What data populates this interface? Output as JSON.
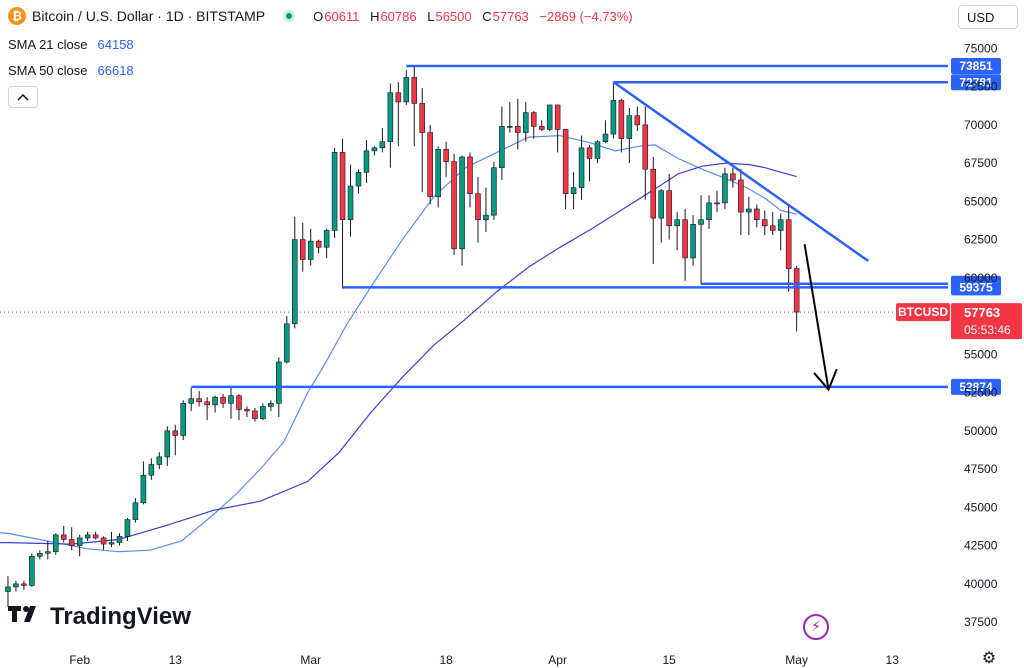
{
  "header": {
    "logo_glyph": "₿",
    "title": "Bitcoin / U.S. Dollar · 1D · BITSTAMP",
    "ohlc": [
      {
        "label": "O",
        "value": "60611"
      },
      {
        "label": "H",
        "value": "60786"
      },
      {
        "label": "L",
        "value": "56500"
      },
      {
        "label": "C",
        "value": "57763"
      }
    ],
    "change": "−2869 (−4.73%)"
  },
  "indicators": [
    {
      "label": "SMA 21 close",
      "value": "64158"
    },
    {
      "label": "SMA 50 close",
      "value": "66618"
    }
  ],
  "collapse_icon": "chevron-up",
  "currency": "USD",
  "branding": "TradingView",
  "colors": {
    "up": "#089981",
    "down": "#f23645",
    "level": "#2962ff",
    "sma": "#2962ff"
  },
  "chart_data": {
    "type": "candlestick",
    "symbol": "BTCUSD",
    "ylim": [
      36200,
      76200
    ],
    "y_ticks": [
      37500,
      40000,
      42500,
      45000,
      47500,
      50000,
      52500,
      55000,
      57500,
      60000,
      62500,
      65000,
      67500,
      70000,
      72500,
      75000
    ],
    "y_tick_labels": [
      "37500",
      "40000",
      "42500",
      "45000",
      "47500",
      "50000",
      "52500",
      "55000",
      "57500",
      "60000",
      "62500",
      "65000",
      "67500",
      "70000",
      "72500",
      "75000"
    ],
    "x_labels": [
      {
        "label": "Feb",
        "date": "2024-02-01"
      },
      {
        "label": "13",
        "date": "2024-02-13"
      },
      {
        "label": "Mar",
        "date": "2024-03-01"
      },
      {
        "label": "18",
        "date": "2024-03-18"
      },
      {
        "label": "Apr",
        "date": "2024-04-01"
      },
      {
        "label": "15",
        "date": "2024-04-15"
      },
      {
        "label": "May",
        "date": "2024-05-01"
      },
      {
        "label": "13",
        "date": "2024-05-13"
      }
    ],
    "x_range": [
      "2024-01-22",
      "2024-05-20"
    ],
    "candles": [
      {
        "date": "2024-01-23",
        "o": 39500,
        "h": 40500,
        "l": 38500,
        "c": 39800
      },
      {
        "date": "2024-01-24",
        "o": 39800,
        "h": 40200,
        "l": 39500,
        "c": 40000
      },
      {
        "date": "2024-01-25",
        "o": 40000,
        "h": 40200,
        "l": 39600,
        "c": 39900
      },
      {
        "date": "2024-01-26",
        "o": 39900,
        "h": 42000,
        "l": 39800,
        "c": 41800
      },
      {
        "date": "2024-01-27",
        "o": 41800,
        "h": 42200,
        "l": 41600,
        "c": 42000
      },
      {
        "date": "2024-01-28",
        "o": 42000,
        "h": 42800,
        "l": 41600,
        "c": 42100
      },
      {
        "date": "2024-01-29",
        "o": 42100,
        "h": 43300,
        "l": 41900,
        "c": 43200
      },
      {
        "date": "2024-01-30",
        "o": 43200,
        "h": 43800,
        "l": 42700,
        "c": 42900
      },
      {
        "date": "2024-01-31",
        "o": 42900,
        "h": 43700,
        "l": 42200,
        "c": 42500
      },
      {
        "date": "2024-02-01",
        "o": 42500,
        "h": 43200,
        "l": 41800,
        "c": 43000
      },
      {
        "date": "2024-02-02",
        "o": 43000,
        "h": 43400,
        "l": 42800,
        "c": 43200
      },
      {
        "date": "2024-02-03",
        "o": 43200,
        "h": 43400,
        "l": 42900,
        "c": 43000
      },
      {
        "date": "2024-02-04",
        "o": 43000,
        "h": 43100,
        "l": 42200,
        "c": 42600
      },
      {
        "date": "2024-02-05",
        "o": 42600,
        "h": 43400,
        "l": 42400,
        "c": 42700
      },
      {
        "date": "2024-02-06",
        "o": 42700,
        "h": 43300,
        "l": 42500,
        "c": 43100
      },
      {
        "date": "2024-02-07",
        "o": 43100,
        "h": 44300,
        "l": 42800,
        "c": 44200
      },
      {
        "date": "2024-02-08",
        "o": 44200,
        "h": 45600,
        "l": 44000,
        "c": 45300
      },
      {
        "date": "2024-02-09",
        "o": 45300,
        "h": 48000,
        "l": 45200,
        "c": 47100
      },
      {
        "date": "2024-02-10",
        "o": 47100,
        "h": 48200,
        "l": 46800,
        "c": 47800
      },
      {
        "date": "2024-02-11",
        "o": 47800,
        "h": 48600,
        "l": 47500,
        "c": 48300
      },
      {
        "date": "2024-02-12",
        "o": 48300,
        "h": 50300,
        "l": 47700,
        "c": 50000
      },
      {
        "date": "2024-02-13",
        "o": 50000,
        "h": 50400,
        "l": 48400,
        "c": 49700
      },
      {
        "date": "2024-02-14",
        "o": 49700,
        "h": 52000,
        "l": 49400,
        "c": 51800
      },
      {
        "date": "2024-02-15",
        "o": 51800,
        "h": 52800,
        "l": 51300,
        "c": 52100
      },
      {
        "date": "2024-02-16",
        "o": 52100,
        "h": 52600,
        "l": 51600,
        "c": 51900
      },
      {
        "date": "2024-02-17",
        "o": 51900,
        "h": 52200,
        "l": 50700,
        "c": 51700
      },
      {
        "date": "2024-02-18",
        "o": 51700,
        "h": 52300,
        "l": 51200,
        "c": 52200
      },
      {
        "date": "2024-02-19",
        "o": 52200,
        "h": 52400,
        "l": 51500,
        "c": 51800
      },
      {
        "date": "2024-02-20",
        "o": 51800,
        "h": 52900,
        "l": 50800,
        "c": 52300
      },
      {
        "date": "2024-02-21",
        "o": 52300,
        "h": 52400,
        "l": 50700,
        "c": 51400
      },
      {
        "date": "2024-02-22",
        "o": 51400,
        "h": 51600,
        "l": 50900,
        "c": 51300
      },
      {
        "date": "2024-02-23",
        "o": 51300,
        "h": 51500,
        "l": 50600,
        "c": 50800
      },
      {
        "date": "2024-02-24",
        "o": 50800,
        "h": 51800,
        "l": 50700,
        "c": 51600
      },
      {
        "date": "2024-02-25",
        "o": 51600,
        "h": 52000,
        "l": 51300,
        "c": 51800
      },
      {
        "date": "2024-02-26",
        "o": 51800,
        "h": 54800,
        "l": 50900,
        "c": 54500
      },
      {
        "date": "2024-02-27",
        "o": 54500,
        "h": 57500,
        "l": 54400,
        "c": 57000
      },
      {
        "date": "2024-02-28",
        "o": 57000,
        "h": 64000,
        "l": 56700,
        "c": 62500
      },
      {
        "date": "2024-02-29",
        "o": 62500,
        "h": 63600,
        "l": 60400,
        "c": 61200
      },
      {
        "date": "2024-03-01",
        "o": 61200,
        "h": 63200,
        "l": 60800,
        "c": 62400
      },
      {
        "date": "2024-03-02",
        "o": 62400,
        "h": 62500,
        "l": 61600,
        "c": 62000
      },
      {
        "date": "2024-03-03",
        "o": 62000,
        "h": 63200,
        "l": 61300,
        "c": 63100
      },
      {
        "date": "2024-03-04",
        "o": 63100,
        "h": 68500,
        "l": 62600,
        "c": 68200
      },
      {
        "date": "2024-03-05",
        "o": 68200,
        "h": 69100,
        "l": 59300,
        "c": 63800
      },
      {
        "date": "2024-03-06",
        "o": 63800,
        "h": 67400,
        "l": 62700,
        "c": 66000
      },
      {
        "date": "2024-03-07",
        "o": 66000,
        "h": 67100,
        "l": 65500,
        "c": 66900
      },
      {
        "date": "2024-03-08",
        "o": 66900,
        "h": 69000,
        "l": 66200,
        "c": 68300
      },
      {
        "date": "2024-03-09",
        "o": 68300,
        "h": 68600,
        "l": 68000,
        "c": 68500
      },
      {
        "date": "2024-03-10",
        "o": 68500,
        "h": 69800,
        "l": 68200,
        "c": 68900
      },
      {
        "date": "2024-03-11",
        "o": 68900,
        "h": 72700,
        "l": 67200,
        "c": 72100
      },
      {
        "date": "2024-03-12",
        "o": 72100,
        "h": 72800,
        "l": 68600,
        "c": 71500
      },
      {
        "date": "2024-03-13",
        "o": 71500,
        "h": 73600,
        "l": 71300,
        "c": 73100
      },
      {
        "date": "2024-03-14",
        "o": 73100,
        "h": 73800,
        "l": 68600,
        "c": 71400
      },
      {
        "date": "2024-03-15",
        "o": 71400,
        "h": 72400,
        "l": 65600,
        "c": 69500
      },
      {
        "date": "2024-03-16",
        "o": 69500,
        "h": 70000,
        "l": 64800,
        "c": 65300
      },
      {
        "date": "2024-03-17",
        "o": 65300,
        "h": 68600,
        "l": 64600,
        "c": 68400
      },
      {
        "date": "2024-03-18",
        "o": 68400,
        "h": 68900,
        "l": 66600,
        "c": 67600
      },
      {
        "date": "2024-03-19",
        "o": 67600,
        "h": 68100,
        "l": 61500,
        "c": 61900
      },
      {
        "date": "2024-03-20",
        "o": 61900,
        "h": 68000,
        "l": 60800,
        "c": 67900
      },
      {
        "date": "2024-03-21",
        "o": 67900,
        "h": 68200,
        "l": 64600,
        "c": 65500
      },
      {
        "date": "2024-03-22",
        "o": 65500,
        "h": 66600,
        "l": 62300,
        "c": 63800
      },
      {
        "date": "2024-03-23",
        "o": 63800,
        "h": 65900,
        "l": 63000,
        "c": 64100
      },
      {
        "date": "2024-03-24",
        "o": 64100,
        "h": 67600,
        "l": 63800,
        "c": 67200
      },
      {
        "date": "2024-03-25",
        "o": 67200,
        "h": 71200,
        "l": 66400,
        "c": 69900
      },
      {
        "date": "2024-03-26",
        "o": 69900,
        "h": 71500,
        "l": 69500,
        "c": 69900
      },
      {
        "date": "2024-03-27",
        "o": 69900,
        "h": 71700,
        "l": 68400,
        "c": 69500
      },
      {
        "date": "2024-03-28",
        "o": 69500,
        "h": 71500,
        "l": 68900,
        "c": 70800
      },
      {
        "date": "2024-03-29",
        "o": 70800,
        "h": 70900,
        "l": 69100,
        "c": 69900
      },
      {
        "date": "2024-03-30",
        "o": 69900,
        "h": 70300,
        "l": 69600,
        "c": 69700
      },
      {
        "date": "2024-03-31",
        "o": 69700,
        "h": 71300,
        "l": 69600,
        "c": 71300
      },
      {
        "date": "2024-04-01",
        "o": 71300,
        "h": 71300,
        "l": 68200,
        "c": 69700
      },
      {
        "date": "2024-04-02",
        "o": 69700,
        "h": 69700,
        "l": 64500,
        "c": 65500
      },
      {
        "date": "2024-04-03",
        "o": 65500,
        "h": 66900,
        "l": 64500,
        "c": 65900
      },
      {
        "date": "2024-04-04",
        "o": 65900,
        "h": 69300,
        "l": 65100,
        "c": 68500
      },
      {
        "date": "2024-04-05",
        "o": 68500,
        "h": 68700,
        "l": 66300,
        "c": 67800
      },
      {
        "date": "2024-04-06",
        "o": 67800,
        "h": 69000,
        "l": 67500,
        "c": 68900
      },
      {
        "date": "2024-04-07",
        "o": 68900,
        "h": 70300,
        "l": 68800,
        "c": 69400
      },
      {
        "date": "2024-04-08",
        "o": 69400,
        "h": 72700,
        "l": 69100,
        "c": 71600
      },
      {
        "date": "2024-04-09",
        "o": 71600,
        "h": 71700,
        "l": 68200,
        "c": 69100
      },
      {
        "date": "2024-04-10",
        "o": 69100,
        "h": 71100,
        "l": 67500,
        "c": 70600
      },
      {
        "date": "2024-04-11",
        "o": 70600,
        "h": 71200,
        "l": 69600,
        "c": 70000
      },
      {
        "date": "2024-04-12",
        "o": 70000,
        "h": 71200,
        "l": 65100,
        "c": 67100
      },
      {
        "date": "2024-04-13",
        "o": 67100,
        "h": 67900,
        "l": 60900,
        "c": 63900
      },
      {
        "date": "2024-04-14",
        "o": 63900,
        "h": 65800,
        "l": 62300,
        "c": 65700
      },
      {
        "date": "2024-04-15",
        "o": 65700,
        "h": 66800,
        "l": 62500,
        "c": 63400
      },
      {
        "date": "2024-04-16",
        "o": 63400,
        "h": 64300,
        "l": 61800,
        "c": 63800
      },
      {
        "date": "2024-04-17",
        "o": 63800,
        "h": 64500,
        "l": 59800,
        "c": 61300
      },
      {
        "date": "2024-04-18",
        "o": 61300,
        "h": 64100,
        "l": 60800,
        "c": 63500
      },
      {
        "date": "2024-04-19",
        "o": 63500,
        "h": 65400,
        "l": 59600,
        "c": 63800
      },
      {
        "date": "2024-04-20",
        "o": 63800,
        "h": 65400,
        "l": 63200,
        "c": 64900
      },
      {
        "date": "2024-04-21",
        "o": 64900,
        "h": 65700,
        "l": 64300,
        "c": 64900
      },
      {
        "date": "2024-04-22",
        "o": 64900,
        "h": 67200,
        "l": 64500,
        "c": 66800
      },
      {
        "date": "2024-04-23",
        "o": 66800,
        "h": 67200,
        "l": 65900,
        "c": 66400
      },
      {
        "date": "2024-04-24",
        "o": 66400,
        "h": 67100,
        "l": 62800,
        "c": 64300
      },
      {
        "date": "2024-04-25",
        "o": 64300,
        "h": 65300,
        "l": 62800,
        "c": 64500
      },
      {
        "date": "2024-04-26",
        "o": 64500,
        "h": 64800,
        "l": 63300,
        "c": 63800
      },
      {
        "date": "2024-04-27",
        "o": 63800,
        "h": 64400,
        "l": 62800,
        "c": 63400
      },
      {
        "date": "2024-04-28",
        "o": 63400,
        "h": 64300,
        "l": 62800,
        "c": 63100
      },
      {
        "date": "2024-04-29",
        "o": 63100,
        "h": 64200,
        "l": 61800,
        "c": 63800
      },
      {
        "date": "2024-04-30",
        "o": 63800,
        "h": 64700,
        "l": 59100,
        "c": 60600
      },
      {
        "date": "2024-05-01",
        "o": 60611,
        "h": 60786,
        "l": 56500,
        "c": 57763
      }
    ],
    "sma21": [
      [
        0,
        43300
      ],
      [
        5,
        42800
      ],
      [
        10,
        42300
      ],
      [
        14,
        42100
      ],
      [
        18,
        42200
      ],
      [
        22,
        42800
      ],
      [
        26,
        44500
      ],
      [
        29,
        45900
      ],
      [
        32,
        47500
      ],
      [
        35,
        49300
      ],
      [
        38,
        52500
      ],
      [
        40,
        54200
      ],
      [
        43,
        57000
      ],
      [
        46,
        59400
      ],
      [
        50,
        62500
      ],
      [
        54,
        65300
      ],
      [
        58,
        67200
      ],
      [
        62,
        68200
      ],
      [
        66,
        69200
      ],
      [
        70,
        69300
      ],
      [
        74,
        68800
      ],
      [
        77,
        68300
      ],
      [
        80,
        68600
      ],
      [
        82,
        68700
      ],
      [
        85,
        67800
      ],
      [
        88,
        67100
      ],
      [
        91,
        66500
      ],
      [
        94,
        65800
      ],
      [
        96,
        65200
      ],
      [
        98,
        64400
      ],
      [
        100,
        64158
      ]
    ],
    "sma50": [
      [
        0,
        42700
      ],
      [
        8,
        42600
      ],
      [
        14,
        42900
      ],
      [
        20,
        43800
      ],
      [
        26,
        44800
      ],
      [
        32,
        45400
      ],
      [
        38,
        46700
      ],
      [
        42,
        48600
      ],
      [
        46,
        51200
      ],
      [
        50,
        53500
      ],
      [
        54,
        55600
      ],
      [
        58,
        57300
      ],
      [
        62,
        59100
      ],
      [
        66,
        60700
      ],
      [
        70,
        62000
      ],
      [
        74,
        63200
      ],
      [
        78,
        64500
      ],
      [
        82,
        65800
      ],
      [
        85,
        66800
      ],
      [
        88,
        67300
      ],
      [
        91,
        67500
      ],
      [
        94,
        67400
      ],
      [
        96,
        67200
      ],
      [
        98,
        66900
      ],
      [
        100,
        66618
      ]
    ],
    "levels": [
      {
        "value": 73851,
        "label": "73851",
        "from": "2024-03-13"
      },
      {
        "value": 72781,
        "label": "72781",
        "from": "2024-04-08"
      },
      {
        "value": 59611,
        "label": "59611",
        "from": "2024-04-19"
      },
      {
        "value": 59375,
        "label": "59375",
        "from": "2024-03-05"
      },
      {
        "value": 52874,
        "label": "52874",
        "from": "2024-02-15"
      }
    ],
    "trendline": {
      "from": {
        "date": "2024-04-08",
        "value": 72800
      },
      "to": {
        "date": "2024-05-10",
        "value": 61100
      }
    },
    "projection_arrow": {
      "from": {
        "date": "2024-05-02",
        "value": 62200
      },
      "to": {
        "date": "2024-05-05",
        "value": 52700
      }
    },
    "last_price": {
      "symbol": "BTCUSD",
      "value": 57763,
      "label": "57763",
      "countdown": "05:53:46"
    }
  }
}
